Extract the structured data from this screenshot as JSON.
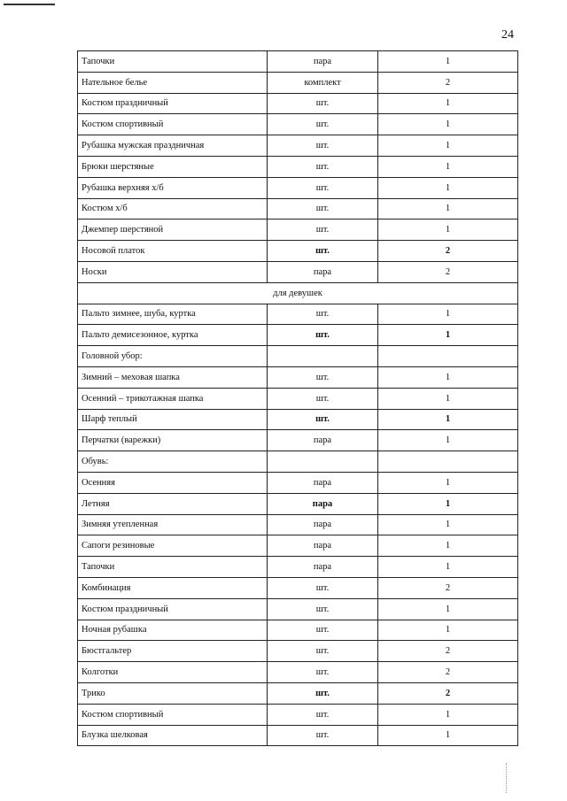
{
  "page_number": "24",
  "rows": [
    {
      "name": "Тапочки",
      "unit": "пара",
      "qty": "1"
    },
    {
      "name": "Нательное белье",
      "unit": "комплект",
      "qty": "2"
    },
    {
      "name": "Костюм праздничный",
      "unit": "шт.",
      "qty": "1"
    },
    {
      "name": "Костюм спортивный",
      "unit": "шт.",
      "qty": "1"
    },
    {
      "name": "Рубашка мужская праздничная",
      "unit": "шт.",
      "qty": "1"
    },
    {
      "name": "Брюки шерстяные",
      "unit": "шт.",
      "qty": "1"
    },
    {
      "name": "Рубашка верхняя х/б",
      "unit": "шт.",
      "qty": "1"
    },
    {
      "name": "Костюм х/б",
      "unit": "шт.",
      "qty": "1"
    },
    {
      "name": "Джемпер шерстяной",
      "unit": "шт.",
      "qty": "1"
    },
    {
      "name": "Носовой платок",
      "unit": "шт.",
      "qty": "2",
      "bold": true
    },
    {
      "name": "Носки",
      "unit": "пара",
      "qty": "2"
    },
    {
      "section": "для девушек"
    },
    {
      "name": "Пальто зимнее, шуба, куртка",
      "unit": "шт.",
      "qty": "1"
    },
    {
      "name": "Пальто демисезонное, куртка",
      "unit": "шт.",
      "qty": "1",
      "bold": true
    },
    {
      "name": "Головной убор:",
      "unit": "",
      "qty": ""
    },
    {
      "name": "Зимний – меховая шапка",
      "unit": "шт.",
      "qty": "1"
    },
    {
      "name": "Осенний – трикотажная шапка",
      "unit": "шт.",
      "qty": "1"
    },
    {
      "name": "Шарф теплый",
      "unit": "шт.",
      "qty": "1",
      "bold": true
    },
    {
      "name": "Перчатки (варежки)",
      "unit": "пара",
      "qty": "1"
    },
    {
      "name": "Обувь:",
      "unit": "",
      "qty": ""
    },
    {
      "name": "Осенняя",
      "unit": "пара",
      "qty": "1"
    },
    {
      "name": "Летняя",
      "unit": "пара",
      "qty": "1",
      "bold": true
    },
    {
      "name": "Зимняя утепленная",
      "unit": "пара",
      "qty": "1"
    },
    {
      "name": "Сапоги резиновые",
      "unit": "пара",
      "qty": "1"
    },
    {
      "name": "Тапочки",
      "unit": "пара",
      "qty": "1"
    },
    {
      "name": "Комбинация",
      "unit": "шт.",
      "qty": "2"
    },
    {
      "name": "Костюм праздничный",
      "unit": "шт.",
      "qty": "1"
    },
    {
      "name": "Ночная рубашка",
      "unit": "шт.",
      "qty": "1"
    },
    {
      "name": "Бюстгальтер",
      "unit": "шт.",
      "qty": "2"
    },
    {
      "name": "Колготки",
      "unit": "шт.",
      "qty": "2"
    },
    {
      "name": "Трико",
      "unit": "шт.",
      "qty": "2",
      "bold": true
    },
    {
      "name": "Костюм спортивный",
      "unit": "шт.",
      "qty": "1"
    },
    {
      "name": "Блузка шелковая",
      "unit": "шт.",
      "qty": "1"
    }
  ]
}
